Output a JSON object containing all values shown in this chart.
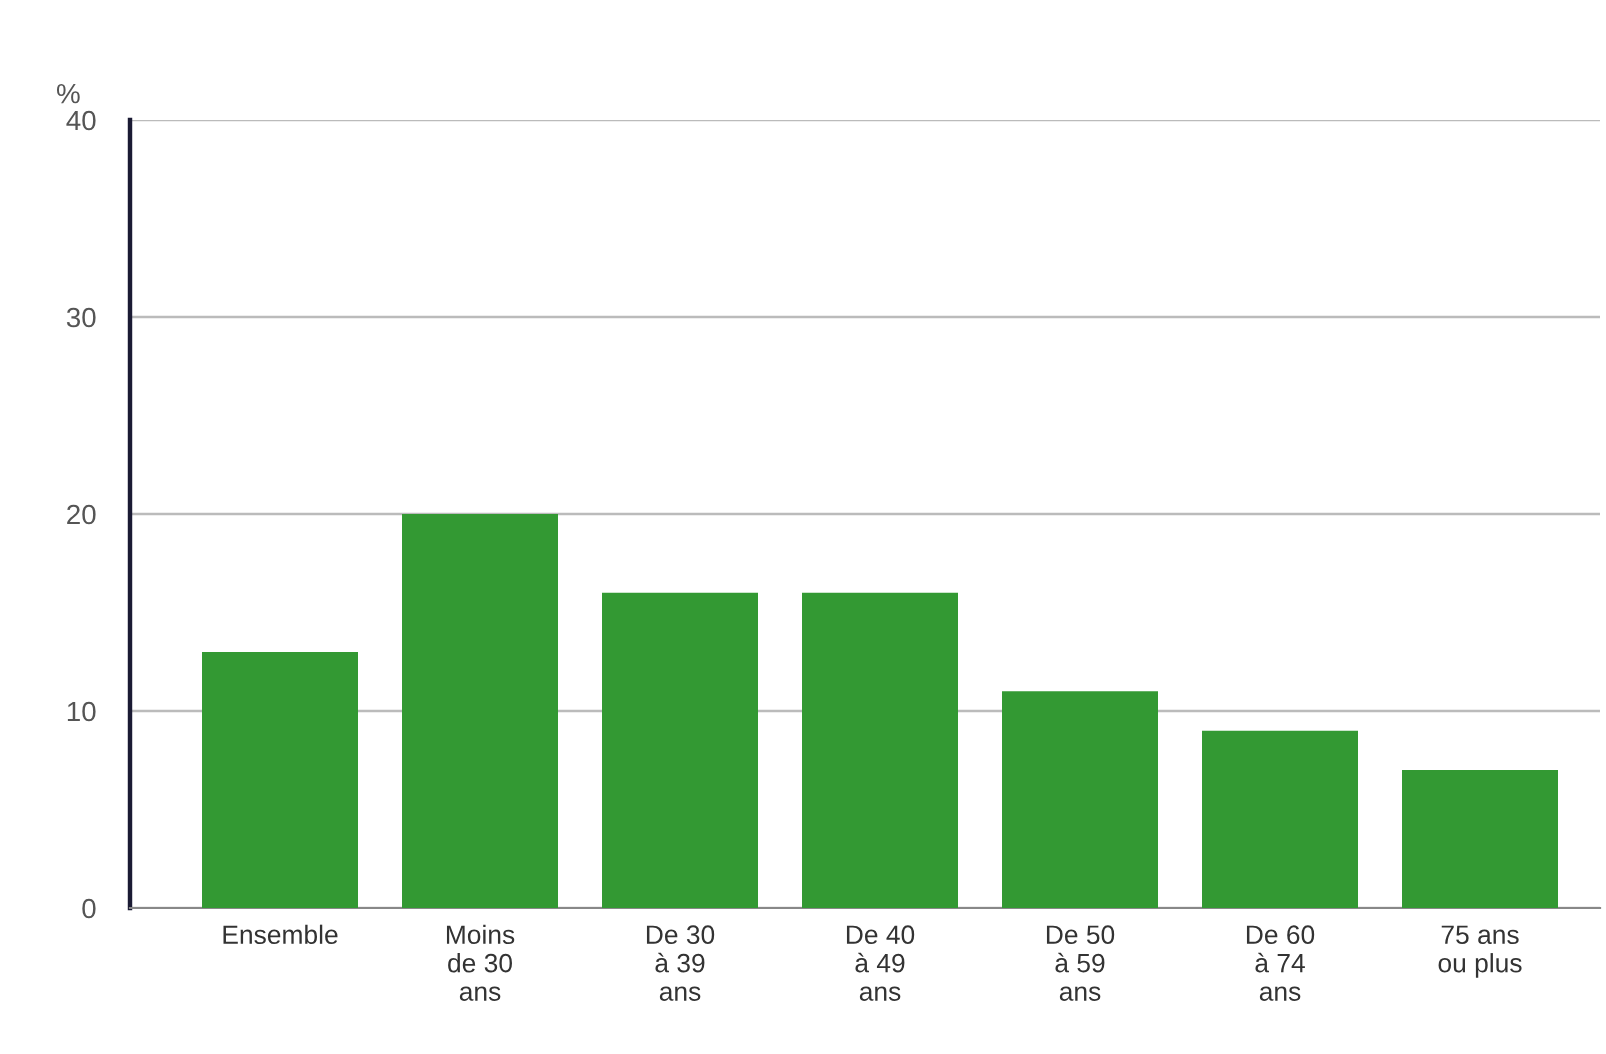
{
  "chart_data": {
    "type": "bar",
    "ylabel": "%",
    "categories": [
      "Ensemble",
      "Moins\nde 30\nans",
      "De 30\nà 39\nans",
      "De 40\nà 49\nans",
      "De 50\nà 59\nans",
      "De 60\nà 74\nans",
      "75 ans\nou plus"
    ],
    "values": [
      13,
      20,
      16,
      16,
      11,
      9,
      7
    ],
    "color": "#339933",
    "ylim": [
      0,
      40
    ],
    "yticks": [
      0,
      10,
      20,
      30,
      40
    ],
    "grid": "y",
    "legend": false
  }
}
